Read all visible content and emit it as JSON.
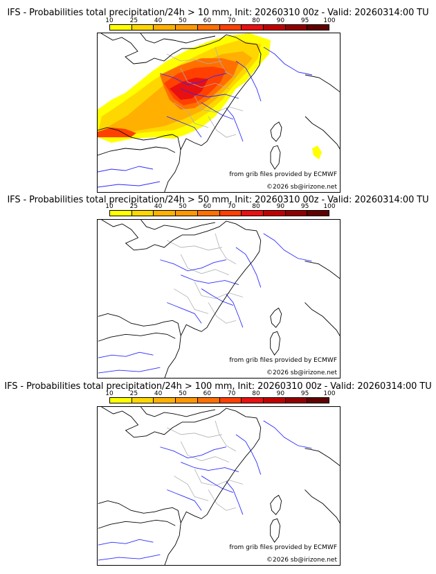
{
  "panels": [
    {
      "title": "IFS - Probabilities total precipitation/24h > 10 mm, Init: 20260310 00z - Valid: 20260314:00 TU",
      "source_credit": "from grib files provided by ECMWF",
      "copyright": "©2026 sb@irizone.net",
      "has_precip": true
    },
    {
      "title": "IFS - Probabilities total precipitation/24h > 50 mm, Init: 20260310 00z - Valid: 20260314:00 TU",
      "source_credit": "from grib files provided by ECMWF",
      "copyright": "©2026 sb@irizone.net",
      "has_precip": false
    },
    {
      "title": "IFS - Probabilities total precipitation/24h > 100 mm, Init: 20260310 00z - Valid: 20260314:00 TU",
      "source_credit": "from grib files provided by ECMWF",
      "copyright": "©2026 sb@irizone.net",
      "has_precip": false
    }
  ],
  "colorbar": {
    "ticks": [
      "10",
      "25",
      "40",
      "50",
      "60",
      "70",
      "80",
      "90",
      "95",
      "100"
    ],
    "colors": [
      "#ffff00",
      "#ffd700",
      "#ffb000",
      "#ff9800",
      "#ff7000",
      "#ff4000",
      "#e81010",
      "#c00000",
      "#900000",
      "#600000"
    ]
  },
  "colors": {
    "coast": "#000000",
    "rivers": "#2a2aff",
    "regions": "#b0b0b0"
  }
}
